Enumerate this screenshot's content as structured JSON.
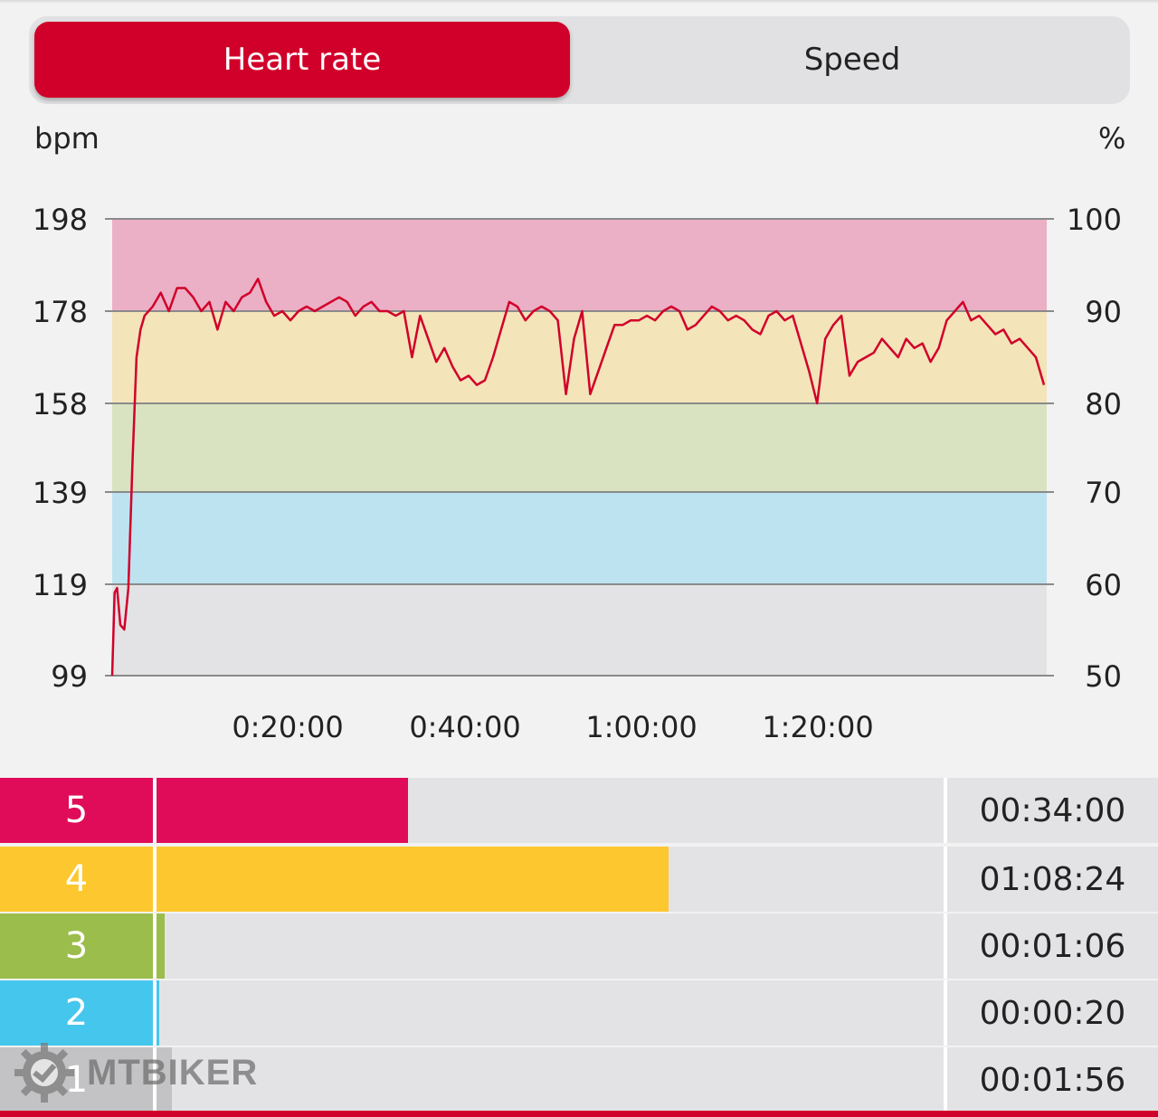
{
  "tabs": [
    {
      "label": "Heart rate",
      "active": true
    },
    {
      "label": "Speed",
      "active": false
    }
  ],
  "chart": {
    "left_unit": "bpm",
    "right_unit": "%"
  },
  "chart_data": {
    "type": "line",
    "series": [
      {
        "values_time_min_bpm": [
          [
            0,
            99
          ],
          [
            0.3,
            117
          ],
          [
            0.6,
            118
          ],
          [
            1,
            110
          ],
          [
            1.5,
            109
          ],
          [
            2,
            118
          ],
          [
            2.5,
            145
          ],
          [
            3,
            168
          ],
          [
            3.5,
            174
          ],
          [
            4,
            177
          ],
          [
            5,
            179
          ],
          [
            6,
            182
          ],
          [
            7,
            178
          ],
          [
            8,
            183
          ],
          [
            9,
            183
          ],
          [
            10,
            181
          ],
          [
            11,
            178
          ],
          [
            12,
            180
          ],
          [
            13,
            174
          ],
          [
            14,
            180
          ],
          [
            15,
            178
          ],
          [
            16,
            181
          ],
          [
            17,
            182
          ],
          [
            18,
            185
          ],
          [
            19,
            180
          ],
          [
            20,
            177
          ],
          [
            21,
            178
          ],
          [
            22,
            176
          ],
          [
            23,
            178
          ],
          [
            24,
            179
          ],
          [
            25,
            178
          ],
          [
            26,
            179
          ],
          [
            27,
            180
          ],
          [
            28,
            181
          ],
          [
            29,
            180
          ],
          [
            30,
            177
          ],
          [
            31,
            179
          ],
          [
            32,
            180
          ],
          [
            33,
            178
          ],
          [
            34,
            178
          ],
          [
            35,
            177
          ],
          [
            36,
            178
          ],
          [
            37,
            168
          ],
          [
            38,
            177
          ],
          [
            39,
            172
          ],
          [
            40,
            167
          ],
          [
            41,
            170
          ],
          [
            42,
            166
          ],
          [
            43,
            163
          ],
          [
            44,
            164
          ],
          [
            45,
            162
          ],
          [
            46,
            163
          ],
          [
            47,
            168
          ],
          [
            48,
            174
          ],
          [
            49,
            180
          ],
          [
            50,
            179
          ],
          [
            51,
            176
          ],
          [
            52,
            178
          ],
          [
            53,
            179
          ],
          [
            54,
            178
          ],
          [
            55,
            176
          ],
          [
            56,
            160
          ],
          [
            57,
            172
          ],
          [
            58,
            178
          ],
          [
            59,
            160
          ],
          [
            60,
            165
          ],
          [
            61,
            170
          ],
          [
            62,
            175
          ],
          [
            63,
            175
          ],
          [
            64,
            176
          ],
          [
            65,
            176
          ],
          [
            66,
            177
          ],
          [
            67,
            176
          ],
          [
            68,
            178
          ],
          [
            69,
            179
          ],
          [
            70,
            178
          ],
          [
            71,
            174
          ],
          [
            72,
            175
          ],
          [
            73,
            177
          ],
          [
            74,
            179
          ],
          [
            75,
            178
          ],
          [
            76,
            176
          ],
          [
            77,
            177
          ],
          [
            78,
            176
          ],
          [
            79,
            174
          ],
          [
            80,
            173
          ],
          [
            81,
            177
          ],
          [
            82,
            178
          ],
          [
            83,
            176
          ],
          [
            84,
            177
          ],
          [
            85,
            171
          ],
          [
            86,
            165
          ],
          [
            87,
            158
          ],
          [
            88,
            172
          ],
          [
            89,
            175
          ],
          [
            90,
            177
          ],
          [
            91,
            164
          ],
          [
            92,
            167
          ],
          [
            93,
            168
          ],
          [
            94,
            169
          ],
          [
            95,
            172
          ],
          [
            96,
            170
          ],
          [
            97,
            168
          ],
          [
            98,
            172
          ],
          [
            99,
            170
          ],
          [
            100,
            171
          ],
          [
            101,
            167
          ],
          [
            102,
            170
          ],
          [
            103,
            176
          ],
          [
            104,
            178
          ],
          [
            105,
            180
          ],
          [
            106,
            176
          ],
          [
            107,
            177
          ],
          [
            108,
            175
          ],
          [
            109,
            173
          ],
          [
            110,
            174
          ],
          [
            111,
            171
          ],
          [
            112,
            172
          ],
          [
            113,
            170
          ],
          [
            114,
            168
          ],
          [
            115,
            162
          ]
        ]
      }
    ],
    "y_left_ticks": [
      "198",
      "178",
      "158",
      "139",
      "119",
      "99"
    ],
    "y_right_ticks": [
      "100",
      "90",
      "80",
      "70",
      "60",
      "50"
    ],
    "x_ticks": [
      "0:20:00",
      "0:40:00",
      "1:00:00",
      "1:20:00"
    ],
    "ylim": [
      99,
      198
    ],
    "xlim_min": [
      0,
      106
    ],
    "zone_colors": [
      "#e3e3e5",
      "#bde3f1",
      "#d9e2c1",
      "#f3e4b9",
      "#ebafc6"
    ],
    "line_color": "#d1002a",
    "grid": true
  },
  "zones": [
    {
      "number": "5",
      "time": "00:34:00",
      "fraction": 0.32,
      "color": "#e00c5a"
    },
    {
      "number": "4",
      "time": "01:08:24",
      "fraction": 0.65,
      "color": "#fdc82f"
    },
    {
      "number": "3",
      "time": "00:01:06",
      "fraction": 0.01,
      "color": "#9bbd4b"
    },
    {
      "number": "2",
      "time": "00:00:20",
      "fraction": 0.004,
      "color": "#45c6ec"
    },
    {
      "number": "1",
      "time": "00:01:56",
      "fraction": 0.02,
      "color": "#c3c3c5"
    }
  ],
  "watermark": {
    "text": "MTBIKER"
  }
}
